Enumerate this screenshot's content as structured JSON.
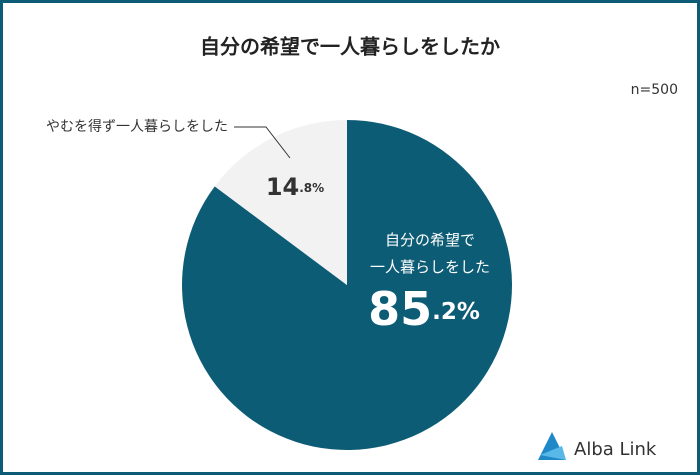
{
  "chart_data": {
    "type": "pie",
    "title": "自分の希望で一人暮らしをしたか",
    "annotation": "n=500",
    "categories": [
      "自分の希望で一人暮らしをした",
      "やむを得ず一人暮らしをした"
    ],
    "values": [
      85.2,
      14.8
    ],
    "value_labels": [
      "85.2%",
      "14.8%"
    ],
    "colors": [
      "#0d5c75",
      "#f2f2f2"
    ]
  },
  "brand": "Alba Link"
}
